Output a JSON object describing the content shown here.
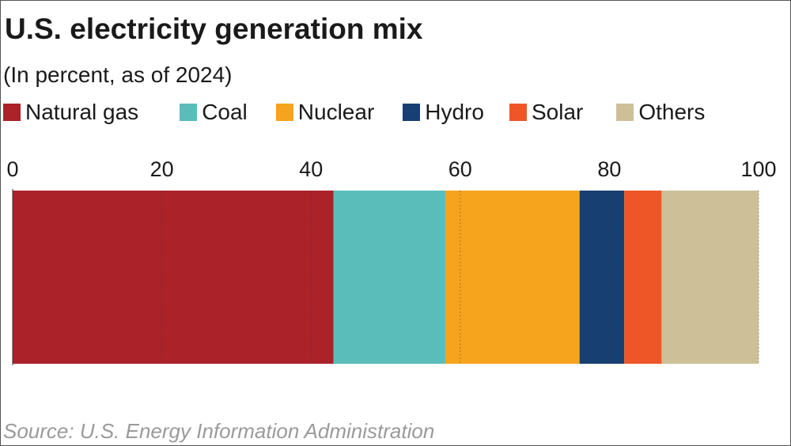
{
  "header": {
    "title": "U.S. electricity generation mix",
    "subtitle": "(In percent, as of 2024)"
  },
  "footer": {
    "source": "Source: U.S. Energy Information Administration"
  },
  "chart_data": {
    "type": "bar",
    "orientation": "horizontal",
    "stacked": true,
    "title": "U.S. electricity generation mix",
    "subtitle": "(In percent, as of 2024)",
    "categories": [
      ""
    ],
    "series": [
      {
        "name": "Natural gas",
        "values": [
          43
        ],
        "color": "#ab2229"
      },
      {
        "name": "Coal",
        "values": [
          15
        ],
        "color": "#5bbdba"
      },
      {
        "name": "Nuclear",
        "values": [
          18
        ],
        "color": "#f6a41d"
      },
      {
        "name": "Hydro",
        "values": [
          6
        ],
        "color": "#173f72"
      },
      {
        "name": "Solar",
        "values": [
          5
        ],
        "color": "#ee5628"
      },
      {
        "name": "Others",
        "values": [
          13
        ],
        "color": "#cdc098"
      }
    ],
    "xlim": [
      0,
      100
    ],
    "xticks": [
      "0",
      "20",
      "40",
      "60",
      "80",
      "100"
    ],
    "axis_position": "top",
    "grid": true,
    "legend_position": "top"
  }
}
